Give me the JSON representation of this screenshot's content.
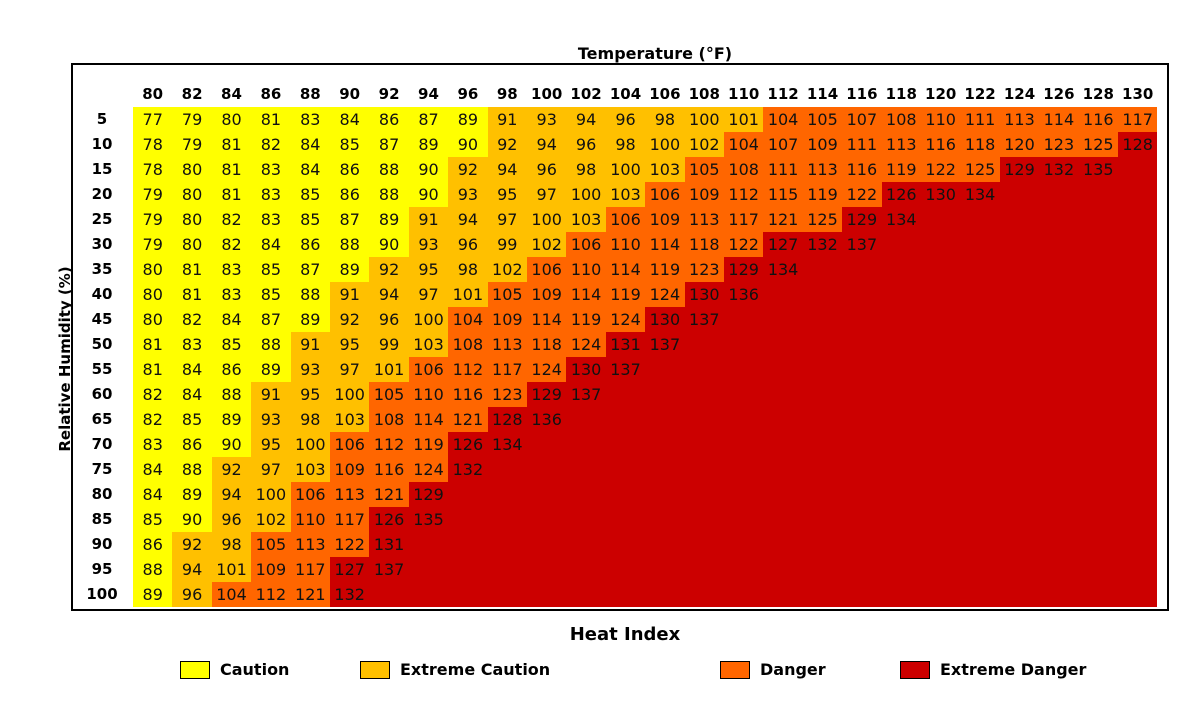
{
  "chart_data": {
    "type": "heatmap",
    "title": "Heat Index",
    "xlabel": "Temperature (°F)",
    "ylabel": "Relative Humidity (%)",
    "x": [
      80,
      82,
      84,
      86,
      88,
      90,
      92,
      94,
      96,
      98,
      100,
      102,
      104,
      106,
      108,
      110,
      112,
      114,
      116,
      118,
      120,
      122,
      124,
      126,
      128,
      130
    ],
    "y": [
      5,
      10,
      15,
      20,
      25,
      30,
      35,
      40,
      45,
      50,
      55,
      60,
      65,
      70,
      75,
      80,
      85,
      90,
      95,
      100
    ],
    "values": [
      [
        77,
        79,
        80,
        81,
        83,
        84,
        86,
        87,
        89,
        91,
        93,
        94,
        96,
        98,
        100,
        101,
        104,
        105,
        107,
        108,
        110,
        111,
        113,
        114,
        116,
        117
      ],
      [
        78,
        79,
        81,
        82,
        84,
        85,
        87,
        89,
        90,
        92,
        94,
        96,
        98,
        100,
        102,
        104,
        107,
        109,
        111,
        113,
        116,
        118,
        120,
        123,
        125,
        128
      ],
      [
        78,
        80,
        81,
        83,
        84,
        86,
        88,
        90,
        92,
        94,
        96,
        98,
        100,
        103,
        105,
        108,
        111,
        113,
        116,
        119,
        122,
        125,
        129,
        132,
        135
      ],
      [
        79,
        80,
        81,
        83,
        85,
        86,
        88,
        90,
        93,
        95,
        97,
        100,
        103,
        106,
        109,
        112,
        115,
        119,
        122,
        126,
        130,
        134
      ],
      [
        79,
        80,
        82,
        83,
        85,
        87,
        89,
        91,
        94,
        97,
        100,
        103,
        106,
        109,
        113,
        117,
        121,
        125,
        129,
        134
      ],
      [
        79,
        80,
        82,
        84,
        86,
        88,
        90,
        93,
        96,
        99,
        102,
        106,
        110,
        114,
        118,
        122,
        127,
        132,
        137
      ],
      [
        80,
        81,
        83,
        85,
        87,
        89,
        92,
        95,
        98,
        102,
        106,
        110,
        114,
        119,
        123,
        129,
        134
      ],
      [
        80,
        81,
        83,
        85,
        88,
        91,
        94,
        97,
        101,
        105,
        109,
        114,
        119,
        124,
        130,
        136
      ],
      [
        80,
        82,
        84,
        87,
        89,
        92,
        96,
        100,
        104,
        109,
        114,
        119,
        124,
        130,
        137
      ],
      [
        81,
        83,
        85,
        88,
        91,
        95,
        99,
        103,
        108,
        113,
        118,
        124,
        131,
        137
      ],
      [
        81,
        84,
        86,
        89,
        93,
        97,
        101,
        106,
        112,
        117,
        124,
        130,
        137
      ],
      [
        82,
        84,
        88,
        91,
        95,
        100,
        105,
        110,
        116,
        123,
        129,
        137
      ],
      [
        82,
        85,
        89,
        93,
        98,
        103,
        108,
        114,
        121,
        128,
        136
      ],
      [
        83,
        86,
        90,
        95,
        100,
        106,
        112,
        119,
        126,
        134
      ],
      [
        84,
        88,
        92,
        97,
        103,
        109,
        116,
        124,
        132
      ],
      [
        84,
        89,
        94,
        100,
        106,
        113,
        121,
        129
      ],
      [
        85,
        90,
        96,
        102,
        110,
        117,
        126,
        135
      ],
      [
        86,
        92,
        98,
        105,
        113,
        122,
        131
      ],
      [
        88,
        94,
        101,
        109,
        117,
        127,
        137
      ],
      [
        89,
        96,
        104,
        112,
        121,
        132
      ]
    ],
    "legend": [
      {
        "label": "Caution",
        "color": "#ffff00",
        "max": 90
      },
      {
        "label": "Extreme Caution",
        "color": "#ffc000",
        "max": 103
      },
      {
        "label": "Danger",
        "color": "#ff6600",
        "max": 125
      },
      {
        "label": "Extreme Danger",
        "color": "#cc0000",
        "max": 999
      }
    ]
  }
}
